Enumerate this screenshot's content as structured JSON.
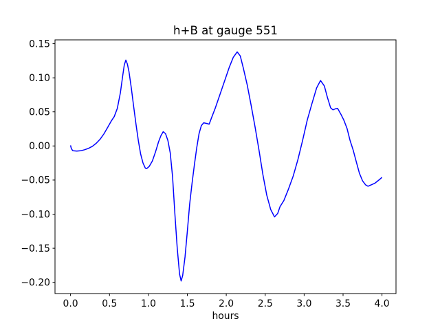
{
  "figure": {
    "background": "#ffffff"
  },
  "chart_data": {
    "type": "line",
    "title": "h+B at gauge 551",
    "xlabel": "hours",
    "ylabel": "",
    "grid": false,
    "legend": false,
    "xlim": [
      -0.2,
      4.18
    ],
    "ylim": [
      -0.2164,
      0.1556
    ],
    "x_ticks": [
      0.0,
      0.5,
      1.0,
      1.5,
      2.0,
      2.5,
      3.0,
      3.5,
      4.0
    ],
    "x_tick_labels": [
      "0.0",
      "0.5",
      "1.0",
      "1.5",
      "2.0",
      "2.5",
      "3.0",
      "3.5",
      "4.0"
    ],
    "y_ticks": [
      0.15,
      0.1,
      0.05,
      0.0,
      -0.05,
      -0.1,
      -0.15,
      -0.2
    ],
    "y_tick_labels": [
      "0.15",
      "0.10",
      "0.05",
      "0.00",
      "−0.05",
      "−0.10",
      "−0.15",
      "−0.20"
    ],
    "series": [
      {
        "color": "#0000ff",
        "line_width": 1.5,
        "points": [
          [
            0.0,
            0.001
          ],
          [
            0.01,
            -0.004
          ],
          [
            0.03,
            -0.007
          ],
          [
            0.08,
            -0.0075
          ],
          [
            0.13,
            -0.007
          ],
          [
            0.18,
            -0.0055
          ],
          [
            0.23,
            -0.0035
          ],
          [
            0.28,
            -0.0005
          ],
          [
            0.33,
            0.004
          ],
          [
            0.38,
            0.01
          ],
          [
            0.43,
            0.018
          ],
          [
            0.48,
            0.028
          ],
          [
            0.52,
            0.036
          ],
          [
            0.56,
            0.043
          ],
          [
            0.6,
            0.055
          ],
          [
            0.64,
            0.078
          ],
          [
            0.67,
            0.103
          ],
          [
            0.69,
            0.119
          ],
          [
            0.71,
            0.126
          ],
          [
            0.73,
            0.12
          ],
          [
            0.75,
            0.109
          ],
          [
            0.78,
            0.085
          ],
          [
            0.81,
            0.058
          ],
          [
            0.84,
            0.032
          ],
          [
            0.87,
            0.008
          ],
          [
            0.9,
            -0.012
          ],
          [
            0.93,
            -0.025
          ],
          [
            0.96,
            -0.0325
          ],
          [
            0.98,
            -0.033
          ],
          [
            1.01,
            -0.03
          ],
          [
            1.05,
            -0.022
          ],
          [
            1.09,
            -0.009
          ],
          [
            1.13,
            0.006
          ],
          [
            1.16,
            0.015
          ],
          [
            1.19,
            0.021
          ],
          [
            1.22,
            0.018
          ],
          [
            1.25,
            0.008
          ],
          [
            1.28,
            -0.01
          ],
          [
            1.31,
            -0.045
          ],
          [
            1.34,
            -0.1
          ],
          [
            1.37,
            -0.15
          ],
          [
            1.4,
            -0.188
          ],
          [
            1.42,
            -0.198
          ],
          [
            1.44,
            -0.19
          ],
          [
            1.47,
            -0.163
          ],
          [
            1.5,
            -0.125
          ],
          [
            1.53,
            -0.085
          ],
          [
            1.56,
            -0.055
          ],
          [
            1.59,
            -0.028
          ],
          [
            1.62,
            -0.003
          ],
          [
            1.65,
            0.018
          ],
          [
            1.68,
            0.03
          ],
          [
            1.71,
            0.034
          ],
          [
            1.75,
            0.033
          ],
          [
            1.78,
            0.032
          ],
          [
            1.82,
            0.044
          ],
          [
            1.86,
            0.056
          ],
          [
            1.92,
            0.076
          ],
          [
            1.98,
            0.096
          ],
          [
            2.04,
            0.116
          ],
          [
            2.09,
            0.13
          ],
          [
            2.14,
            0.138
          ],
          [
            2.18,
            0.132
          ],
          [
            2.22,
            0.114
          ],
          [
            2.27,
            0.089
          ],
          [
            2.32,
            0.059
          ],
          [
            2.37,
            0.028
          ],
          [
            2.42,
            -0.006
          ],
          [
            2.47,
            -0.042
          ],
          [
            2.52,
            -0.072
          ],
          [
            2.57,
            -0.093
          ],
          [
            2.62,
            -0.104
          ],
          [
            2.66,
            -0.099
          ],
          [
            2.69,
            -0.089
          ],
          [
            2.74,
            -0.08
          ],
          [
            2.8,
            -0.063
          ],
          [
            2.86,
            -0.044
          ],
          [
            2.92,
            -0.02
          ],
          [
            2.98,
            0.008
          ],
          [
            3.04,
            0.038
          ],
          [
            3.1,
            0.062
          ],
          [
            3.16,
            0.085
          ],
          [
            3.21,
            0.096
          ],
          [
            3.26,
            0.088
          ],
          [
            3.3,
            0.071
          ],
          [
            3.34,
            0.056
          ],
          [
            3.37,
            0.053
          ],
          [
            3.4,
            0.0545
          ],
          [
            3.43,
            0.055
          ],
          [
            3.47,
            0.047
          ],
          [
            3.51,
            0.038
          ],
          [
            3.55,
            0.026
          ],
          [
            3.59,
            0.008
          ],
          [
            3.63,
            -0.006
          ],
          [
            3.67,
            -0.023
          ],
          [
            3.71,
            -0.04
          ],
          [
            3.75,
            -0.051
          ],
          [
            3.79,
            -0.057
          ],
          [
            3.82,
            -0.059
          ],
          [
            3.86,
            -0.057
          ],
          [
            3.91,
            -0.0545
          ],
          [
            3.96,
            -0.05
          ],
          [
            4.0,
            -0.046
          ]
        ]
      }
    ]
  }
}
